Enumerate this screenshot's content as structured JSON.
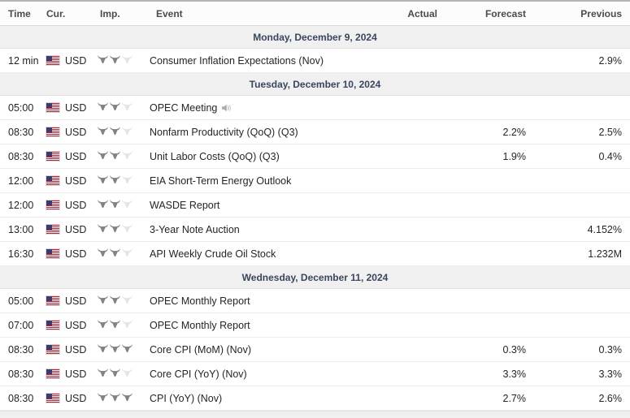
{
  "table": {
    "columns": [
      "Time",
      "Cur.",
      "Imp.",
      "Event",
      "Actual",
      "Forecast",
      "Previous"
    ],
    "sections": [
      {
        "date": "Monday, December 9, 2024",
        "rows": [
          {
            "time": "12 min",
            "currency": "USD",
            "flag": "us-flag-icon",
            "importance": 2,
            "event": "Consumer Inflation Expectations (Nov)",
            "sound_icon": false,
            "actual": "",
            "forecast": "",
            "previous": "2.9%"
          }
        ]
      },
      {
        "date": "Tuesday, December 10, 2024",
        "rows": [
          {
            "time": "05:00",
            "currency": "USD",
            "flag": "us-flag-icon",
            "importance": 2,
            "event": "OPEC Meeting",
            "sound_icon": true,
            "actual": "",
            "forecast": "",
            "previous": ""
          },
          {
            "time": "08:30",
            "currency": "USD",
            "flag": "us-flag-icon",
            "importance": 2,
            "event": "Nonfarm Productivity (QoQ) (Q3)",
            "sound_icon": false,
            "actual": "",
            "forecast": "2.2%",
            "previous": "2.5%"
          },
          {
            "time": "08:30",
            "currency": "USD",
            "flag": "us-flag-icon",
            "importance": 2,
            "event": "Unit Labor Costs (QoQ) (Q3)",
            "sound_icon": false,
            "actual": "",
            "forecast": "1.9%",
            "previous": "0.4%"
          },
          {
            "time": "12:00",
            "currency": "USD",
            "flag": "us-flag-icon",
            "importance": 2,
            "event": "EIA Short-Term Energy Outlook",
            "sound_icon": false,
            "actual": "",
            "forecast": "",
            "previous": ""
          },
          {
            "time": "12:00",
            "currency": "USD",
            "flag": "us-flag-icon",
            "importance": 2,
            "event": "WASDE Report",
            "sound_icon": false,
            "actual": "",
            "forecast": "",
            "previous": ""
          },
          {
            "time": "13:00",
            "currency": "USD",
            "flag": "us-flag-icon",
            "importance": 2,
            "event": "3-Year Note Auction",
            "sound_icon": false,
            "actual": "",
            "forecast": "",
            "previous": "4.152%"
          },
          {
            "time": "16:30",
            "currency": "USD",
            "flag": "us-flag-icon",
            "importance": 2,
            "event": "API Weekly Crude Oil Stock",
            "sound_icon": false,
            "actual": "",
            "forecast": "",
            "previous": "1.232M"
          }
        ]
      },
      {
        "date": "Wednesday, December 11, 2024",
        "rows": [
          {
            "time": "05:00",
            "currency": "USD",
            "flag": "us-flag-icon",
            "importance": 2,
            "event": "OPEC Monthly Report",
            "sound_icon": false,
            "actual": "",
            "forecast": "",
            "previous": ""
          },
          {
            "time": "07:00",
            "currency": "USD",
            "flag": "us-flag-icon",
            "importance": 2,
            "event": "OPEC Monthly Report",
            "sound_icon": false,
            "actual": "",
            "forecast": "",
            "previous": ""
          },
          {
            "time": "08:30",
            "currency": "USD",
            "flag": "us-flag-icon",
            "importance": 3,
            "event": "Core CPI (MoM) (Nov)",
            "sound_icon": false,
            "actual": "",
            "forecast": "0.3%",
            "previous": "0.3%"
          },
          {
            "time": "08:30",
            "currency": "USD",
            "flag": "us-flag-icon",
            "importance": 2,
            "event": "Core CPI (YoY) (Nov)",
            "sound_icon": false,
            "actual": "",
            "forecast": "3.3%",
            "previous": "3.3%"
          },
          {
            "time": "08:30",
            "currency": "USD",
            "flag": "us-flag-icon",
            "importance": 3,
            "event": "CPI (YoY) (Nov)",
            "sound_icon": false,
            "actual": "",
            "forecast": "2.7%",
            "previous": "2.6%"
          }
        ]
      }
    ]
  },
  "icons": {
    "importance": "bull-icon",
    "event_sound": "speaker-icon",
    "currency_flag": "us-flag-icon"
  },
  "colors": {
    "section_text": "#39465e",
    "section_bg": "#f0f0f0",
    "bull_active": "#828282",
    "bull_inactive": "#e4e4e4",
    "speaker": "#ababab"
  }
}
